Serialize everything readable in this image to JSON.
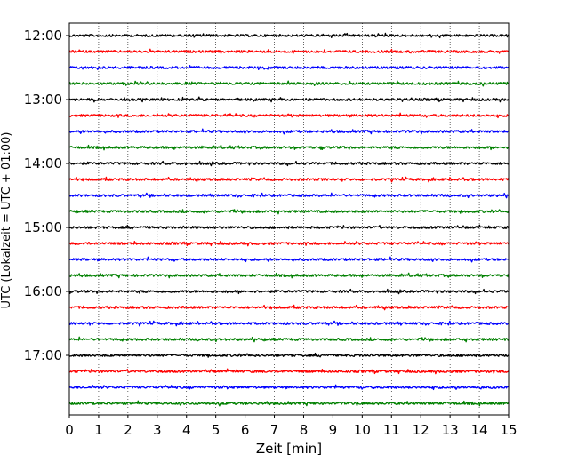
{
  "chart_data": {
    "type": "line",
    "chart_kind": "helicorder (seismogram drum plot)",
    "xlabel": "Zeit  [min]",
    "ylabel": "UTC (Lokalzeit = UTC + 01:00)",
    "xlim": [
      0,
      15
    ],
    "x_ticks": [
      "0",
      "1",
      "2",
      "3",
      "4",
      "5",
      "6",
      "7",
      "8",
      "9",
      "10",
      "11",
      "12",
      "13",
      "14",
      "15"
    ],
    "y_tick_labels": [
      "12:00",
      "13:00",
      "14:00",
      "15:00",
      "16:00",
      "17:00"
    ],
    "trace_start_times": [
      "12:00",
      "12:15",
      "12:30",
      "12:45",
      "13:00",
      "13:15",
      "13:30",
      "13:45",
      "14:00",
      "14:15",
      "14:30",
      "14:45",
      "15:00",
      "15:15",
      "15:30",
      "15:45",
      "16:00",
      "16:15",
      "16:30",
      "16:45",
      "17:00",
      "17:15",
      "17:30",
      "17:45"
    ],
    "trace_minutes": 15,
    "vertical_grid": true,
    "grid_style": "dotted",
    "trace_colors": [
      "#000000",
      "#ff0000",
      "#0000ff",
      "#008000"
    ]
  }
}
